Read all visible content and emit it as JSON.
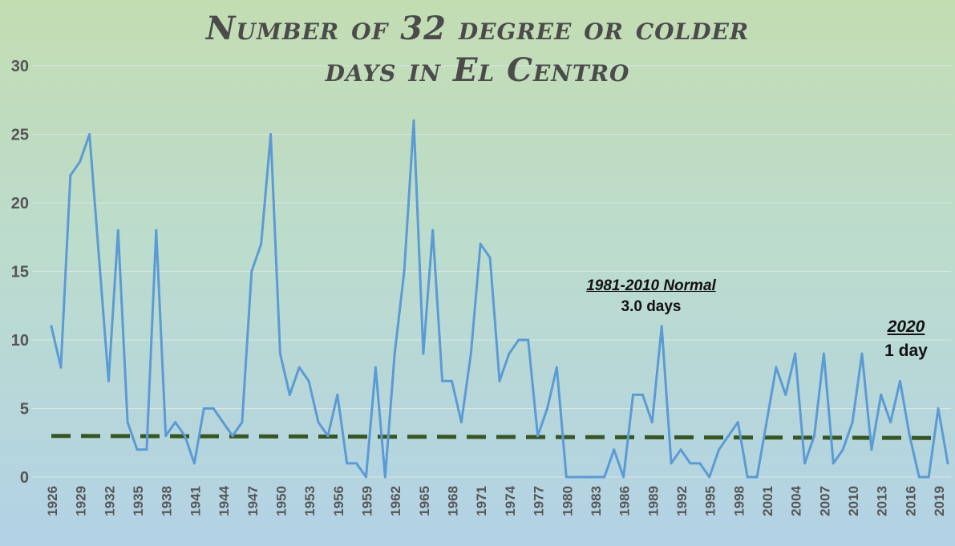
{
  "chart_data": {
    "type": "line",
    "title_line1": "Number of 32 degree or colder",
    "title_line2": "days in El Centro",
    "xlabel": "",
    "ylabel": "",
    "ylim": [
      0,
      30
    ],
    "yticks": [
      0,
      5,
      10,
      15,
      20,
      25,
      30
    ],
    "grid": true,
    "x": [
      1926,
      1927,
      1928,
      1929,
      1930,
      1931,
      1932,
      1933,
      1934,
      1935,
      1936,
      1937,
      1938,
      1939,
      1940,
      1941,
      1942,
      1943,
      1944,
      1945,
      1946,
      1947,
      1948,
      1949,
      1950,
      1951,
      1952,
      1953,
      1954,
      1955,
      1956,
      1957,
      1958,
      1959,
      1960,
      1961,
      1962,
      1963,
      1964,
      1965,
      1966,
      1967,
      1968,
      1969,
      1970,
      1971,
      1972,
      1973,
      1974,
      1975,
      1976,
      1977,
      1978,
      1979,
      1980,
      1981,
      1982,
      1983,
      1984,
      1985,
      1986,
      1987,
      1988,
      1989,
      1990,
      1991,
      1992,
      1993,
      1994,
      1995,
      1996,
      1997,
      1998,
      1999,
      2000,
      2001,
      2002,
      2003,
      2004,
      2005,
      2006,
      2007,
      2008,
      2009,
      2010,
      2011,
      2012,
      2013,
      2014,
      2015,
      2016,
      2017,
      2018,
      2019,
      2020
    ],
    "x_tick_labels": [
      "1926",
      "1929",
      "1932",
      "1935",
      "1938",
      "1941",
      "1944",
      "1947",
      "1950",
      "1953",
      "1956",
      "1959",
      "1962",
      "1965",
      "1968",
      "1971",
      "1974",
      "1977",
      "1980",
      "1983",
      "1986",
      "1989",
      "1992",
      "1995",
      "1998",
      "2001",
      "2004",
      "2007",
      "2010",
      "2013",
      "2016",
      "2019"
    ],
    "series": [
      {
        "color": "#5b9bd5",
        "values": [
          11,
          8,
          22,
          23,
          25,
          16,
          7,
          18,
          4,
          2,
          2,
          18,
          3,
          4,
          3,
          1,
          5,
          5,
          4,
          3,
          4,
          15,
          17,
          25,
          9,
          6,
          8,
          7,
          4,
          3,
          6,
          1,
          1,
          0,
          8,
          0,
          9,
          15,
          26,
          9,
          18,
          7,
          7,
          4,
          9,
          17,
          16,
          7,
          9,
          10,
          10,
          3,
          5,
          8,
          0,
          0,
          0,
          0,
          0,
          2,
          0,
          6,
          6,
          4,
          11,
          1,
          2,
          1,
          1,
          0,
          2,
          3,
          4,
          0,
          0,
          4,
          8,
          6,
          9,
          1,
          3,
          9,
          1,
          2,
          4,
          9,
          2,
          6,
          4,
          7,
          3,
          0,
          0,
          5,
          1
        ]
      },
      {
        "color": "#375623",
        "style": "dashed",
        "values_start": 3.0,
        "values_end": 2.85
      }
    ],
    "annotations": [
      {
        "heading": "1981-2010 Normal",
        "text": "3.0 days"
      },
      {
        "heading": "2020",
        "text": "1 day"
      }
    ]
  }
}
